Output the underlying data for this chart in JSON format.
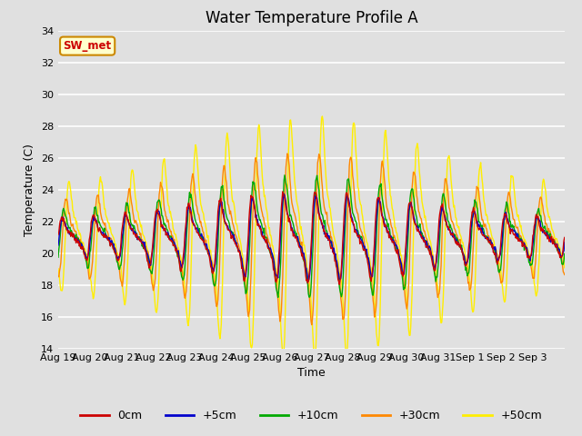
{
  "title": "Water Temperature Profile A",
  "xlabel": "Time",
  "ylabel": "Temperature (C)",
  "ylim": [
    14,
    34
  ],
  "yticks": [
    14,
    16,
    18,
    20,
    22,
    24,
    26,
    28,
    30,
    32,
    34
  ],
  "annotation_text": "SW_met",
  "annotation_bg": "#ffffcc",
  "annotation_border": "#cc8800",
  "annotation_text_color": "#cc0000",
  "line_colors": {
    "0cm": "#cc0000",
    "+5cm": "#0000cc",
    "+10cm": "#00aa00",
    "+30cm": "#ff8800",
    "+50cm": "#ffee00"
  },
  "legend_labels": [
    "0cm",
    "+5cm",
    "+10cm",
    "+30cm",
    "+50cm"
  ],
  "xtick_labels": [
    "Aug 19",
    "Aug 20",
    "Aug 21",
    "Aug 22",
    "Aug 23",
    "Aug 24",
    "Aug 25",
    "Aug 26",
    "Aug 27",
    "Aug 28",
    "Aug 29",
    "Aug 30",
    "Aug 31",
    "Sep 1",
    "Sep 2",
    "Sep 3"
  ],
  "bg_color": "#e0e0e0",
  "plot_bg_color": "#e0e0e0",
  "grid_color": "#ffffff",
  "linewidth": 1.0
}
